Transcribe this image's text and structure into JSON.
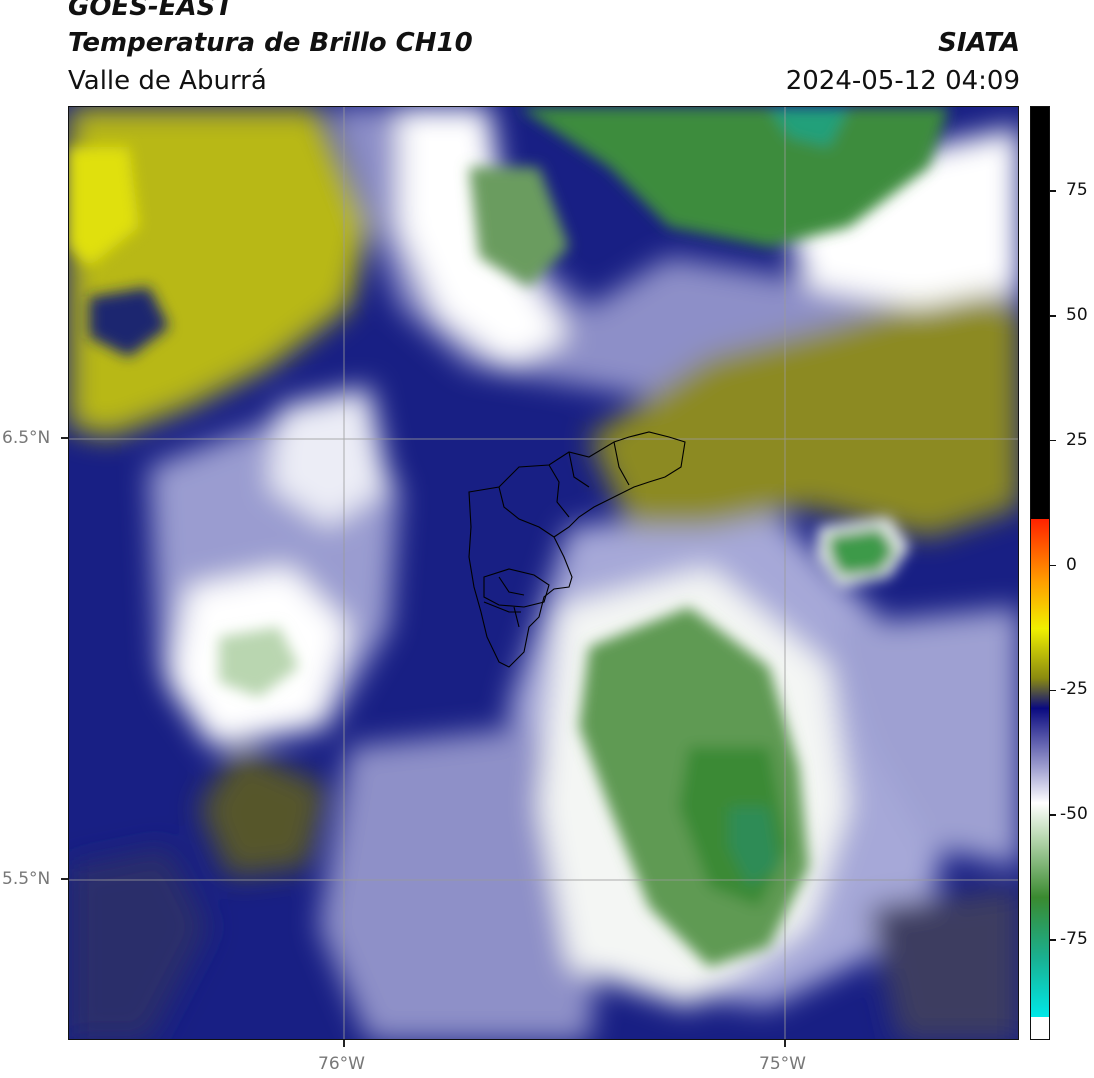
{
  "header": {
    "satellite": "GOES-EAST",
    "product": "Temperatura de Brillo CH10",
    "region": "Valle de Aburrá",
    "agency": "SIATA",
    "datetime": "2024-05-12 04:09"
  },
  "map": {
    "lat_ticks": [
      "6.5°N",
      "5.5°N"
    ],
    "lon_ticks": [
      "76°W",
      "75°W"
    ],
    "gridlines": true
  },
  "colorbar": {
    "ticks": [
      "75",
      "50",
      "25",
      "0",
      "-25",
      "-50",
      "-75"
    ],
    "range": [
      -95,
      92
    ],
    "colors": {
      "saturated": "#000000",
      "warm_red": "#ff2200",
      "warm_orange": "#ff9900",
      "warm_yellow": "#f0f000",
      "olive": "#8a8a10",
      "navy": "#0a0a80",
      "lavender": "#a0a0d0",
      "white": "#ffffff",
      "light_green": "#b8d8b0",
      "green": "#3a8a30",
      "teal": "#1ab090",
      "cyan": "#00e8e8"
    }
  }
}
